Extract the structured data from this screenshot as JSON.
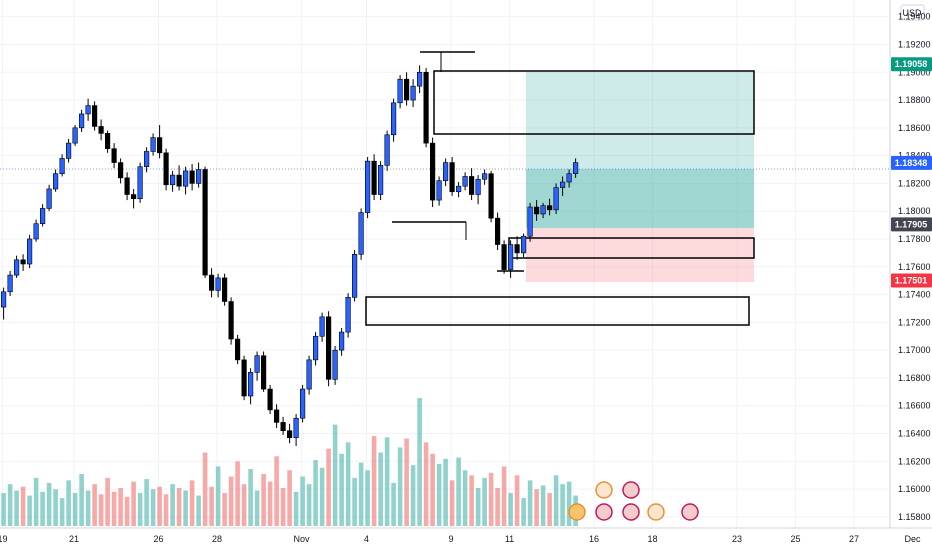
{
  "currency": "USD",
  "chart_data": {
    "type": "candlestick",
    "y_axis": {
      "ticks": [
        "1.19400",
        "1.19200",
        "1.19000",
        "1.18800",
        "1.18600",
        "1.18400",
        "1.18200",
        "1.18000",
        "1.17800",
        "1.17600",
        "1.17400",
        "1.17200",
        "1.17000",
        "1.16800",
        "1.16600",
        "1.16400",
        "1.16200",
        "1.16000",
        "1.15800"
      ],
      "range": [
        1.1572,
        1.1952
      ]
    },
    "x_axis": {
      "labels": [
        {
          "text": "19",
          "x": 1
        },
        {
          "text": "21",
          "x": 12
        },
        {
          "text": "26",
          "x": 25
        },
        {
          "text": "28",
          "x": 34
        },
        {
          "text": "Nov",
          "x": 47
        },
        {
          "text": "4",
          "x": 57
        },
        {
          "text": "9",
          "x": 70
        },
        {
          "text": "11",
          "x": 79
        },
        {
          "text": "16",
          "x": 92
        },
        {
          "text": "18",
          "x": 101
        },
        {
          "text": "23",
          "x": 114
        },
        {
          "text": "25",
          "x": 123
        },
        {
          "text": "27",
          "x": 132
        },
        {
          "text": "Dec",
          "x": 141
        }
      ]
    },
    "price_badges": [
      {
        "value": "1.19058",
        "color": "#089981"
      },
      {
        "value": "1.18348",
        "color": "#2962ff"
      },
      {
        "value": "1.17905",
        "color": "#434651"
      },
      {
        "value": "1.17501",
        "color": "#f23645"
      }
    ],
    "candles": [
      [
        1.1723,
        1.1736,
        1.1719,
        1.1731
      ],
      [
        1.1731,
        1.1745,
        1.1722,
        1.1742
      ],
      [
        1.1742,
        1.1757,
        1.1739,
        1.1754
      ],
      [
        1.1754,
        1.1768,
        1.1752,
        1.1765
      ],
      [
        1.1765,
        1.1769,
        1.1757,
        1.1762
      ],
      [
        1.1762,
        1.1783,
        1.1759,
        1.178
      ],
      [
        1.178,
        1.1794,
        1.1778,
        1.1791
      ],
      [
        1.1791,
        1.1805,
        1.1789,
        1.1802
      ],
      [
        1.1802,
        1.1819,
        1.18,
        1.1816
      ],
      [
        1.1816,
        1.183,
        1.1814,
        1.1827
      ],
      [
        1.1827,
        1.1841,
        1.1825,
        1.1838
      ],
      [
        1.1838,
        1.1852,
        1.1835,
        1.1849
      ],
      [
        1.1849,
        1.1862,
        1.1847,
        1.186
      ],
      [
        1.186,
        1.1873,
        1.1857,
        1.187
      ],
      [
        1.187,
        1.1881,
        1.1865,
        1.1876
      ],
      [
        1.1876,
        1.1879,
        1.1858,
        1.1861
      ],
      [
        1.1861,
        1.1866,
        1.1851,
        1.1856
      ],
      [
        1.1856,
        1.1858,
        1.1842,
        1.1845
      ],
      [
        1.1845,
        1.1849,
        1.1831,
        1.1835
      ],
      [
        1.1835,
        1.1838,
        1.182,
        1.1824
      ],
      [
        1.1824,
        1.1828,
        1.1808,
        1.1812
      ],
      [
        1.1812,
        1.1816,
        1.1802,
        1.1809
      ],
      [
        1.1809,
        1.1835,
        1.1806,
        1.1832
      ],
      [
        1.1832,
        1.1846,
        1.1828,
        1.1843
      ],
      [
        1.1843,
        1.1856,
        1.184,
        1.1853
      ],
      [
        1.1853,
        1.1862,
        1.1838,
        1.1842
      ],
      [
        1.1842,
        1.1845,
        1.1815,
        1.1819
      ],
      [
        1.1819,
        1.1829,
        1.1814,
        1.1826
      ],
      [
        1.1826,
        1.1833,
        1.1815,
        1.1818
      ],
      [
        1.1818,
        1.1832,
        1.1812,
        1.1829
      ],
      [
        1.1829,
        1.1834,
        1.1815,
        1.182
      ],
      [
        1.182,
        1.1835,
        1.1817,
        1.183
      ],
      [
        1.183,
        1.1832,
        1.1752,
        1.1754
      ],
      [
        1.1754,
        1.1759,
        1.1738,
        1.1743
      ],
      [
        1.1743,
        1.1755,
        1.1738,
        1.1752
      ],
      [
        1.1752,
        1.1755,
        1.1732,
        1.1735
      ],
      [
        1.1735,
        1.1738,
        1.1704,
        1.1708
      ],
      [
        1.1708,
        1.1711,
        1.169,
        1.1693
      ],
      [
        1.1693,
        1.1696,
        1.1664,
        1.1667
      ],
      [
        1.1667,
        1.1687,
        1.1661,
        1.1684
      ],
      [
        1.1684,
        1.1699,
        1.1678,
        1.1696
      ],
      [
        1.1696,
        1.1699,
        1.167,
        1.1672
      ],
      [
        1.1672,
        1.1675,
        1.1654,
        1.1657
      ],
      [
        1.1657,
        1.1661,
        1.1644,
        1.1648
      ],
      [
        1.1648,
        1.1652,
        1.1639,
        1.1642
      ],
      [
        1.1642,
        1.1647,
        1.1633,
        1.1637
      ],
      [
        1.1637,
        1.1654,
        1.1631,
        1.1651
      ],
      [
        1.1651,
        1.1675,
        1.1648,
        1.1672
      ],
      [
        1.1672,
        1.1696,
        1.1668,
        1.1693
      ],
      [
        1.1693,
        1.1713,
        1.1689,
        1.171
      ],
      [
        1.171,
        1.1727,
        1.1706,
        1.1724
      ],
      [
        1.1724,
        1.1728,
        1.1674,
        1.1679
      ],
      [
        1.1679,
        1.1703,
        1.1675,
        1.17
      ],
      [
        1.17,
        1.1716,
        1.1696,
        1.1713
      ],
      [
        1.1713,
        1.1741,
        1.1709,
        1.1738
      ],
      [
        1.1738,
        1.1772,
        1.1735,
        1.1769
      ],
      [
        1.1769,
        1.1802,
        1.1765,
        1.1799
      ],
      [
        1.1799,
        1.1839,
        1.1795,
        1.1836
      ],
      [
        1.1836,
        1.1841,
        1.1808,
        1.1812
      ],
      [
        1.1812,
        1.1836,
        1.1808,
        1.1833
      ],
      [
        1.1833,
        1.1858,
        1.1829,
        1.1855
      ],
      [
        1.1855,
        1.1881,
        1.185,
        1.1878
      ],
      [
        1.1878,
        1.1898,
        1.1874,
        1.1895
      ],
      [
        1.1895,
        1.19,
        1.1876,
        1.188
      ],
      [
        1.188,
        1.1895,
        1.1875,
        1.189
      ],
      [
        1.189,
        1.1905,
        1.1885,
        1.19
      ],
      [
        1.19,
        1.1903,
        1.1846,
        1.1849
      ],
      [
        1.1849,
        1.1853,
        1.1803,
        1.1808
      ],
      [
        1.1808,
        1.1825,
        1.1804,
        1.1822
      ],
      [
        1.1822,
        1.1838,
        1.1818,
        1.1835
      ],
      [
        1.1835,
        1.1839,
        1.1811,
        1.1814
      ],
      [
        1.1814,
        1.1821,
        1.181,
        1.1818
      ],
      [
        1.1818,
        1.1828,
        1.1815,
        1.1825
      ],
      [
        1.1825,
        1.1831,
        1.1808,
        1.1812
      ],
      [
        1.1812,
        1.1826,
        1.1805,
        1.1823
      ],
      [
        1.1823,
        1.183,
        1.1819,
        1.1827
      ],
      [
        1.1827,
        1.1829,
        1.1792,
        1.1795
      ],
      [
        1.1795,
        1.1799,
        1.1772,
        1.1776
      ],
      [
        1.1776,
        1.1779,
        1.1755,
        1.1758
      ],
      [
        1.1758,
        1.1779,
        1.1752,
        1.1776
      ],
      [
        1.1776,
        1.1782,
        1.1765,
        1.177
      ],
      [
        1.177,
        1.1784,
        1.1767,
        1.1782
      ],
      [
        1.1782,
        1.1806,
        1.1778,
        1.1803
      ],
      [
        1.1803,
        1.1808,
        1.1793,
        1.1798
      ],
      [
        1.1798,
        1.1806,
        1.1795,
        1.1804
      ],
      [
        1.1804,
        1.1809,
        1.1797,
        1.1801
      ],
      [
        1.1801,
        1.182,
        1.1798,
        1.1817
      ],
      [
        1.1817,
        1.1825,
        1.1811,
        1.1821
      ],
      [
        1.1821,
        1.183,
        1.1817,
        1.1827
      ],
      [
        1.1827,
        1.1838,
        1.1824,
        1.1835
      ]
    ],
    "volumes": [
      30,
      26,
      33,
      28,
      31,
      24,
      38,
      27,
      34,
      29,
      22,
      36,
      26,
      41,
      28,
      33,
      25,
      38,
      27,
      30,
      23,
      35,
      26,
      37,
      29,
      31,
      25,
      33,
      30,
      28,
      36,
      24,
      58,
      31,
      47,
      26,
      39,
      51,
      33,
      45,
      28,
      41,
      35,
      55,
      30,
      44,
      27,
      39,
      33,
      52,
      46,
      61,
      80,
      57,
      66,
      38,
      50,
      44,
      71,
      58,
      70,
      34,
      62,
      69,
      48,
      101,
      66,
      57,
      49,
      53,
      36,
      54,
      44,
      40,
      30,
      38,
      42,
      30,
      47,
      26,
      40,
      22,
      36,
      29,
      32,
      26,
      40,
      33,
      35,
      24
    ]
  }
}
